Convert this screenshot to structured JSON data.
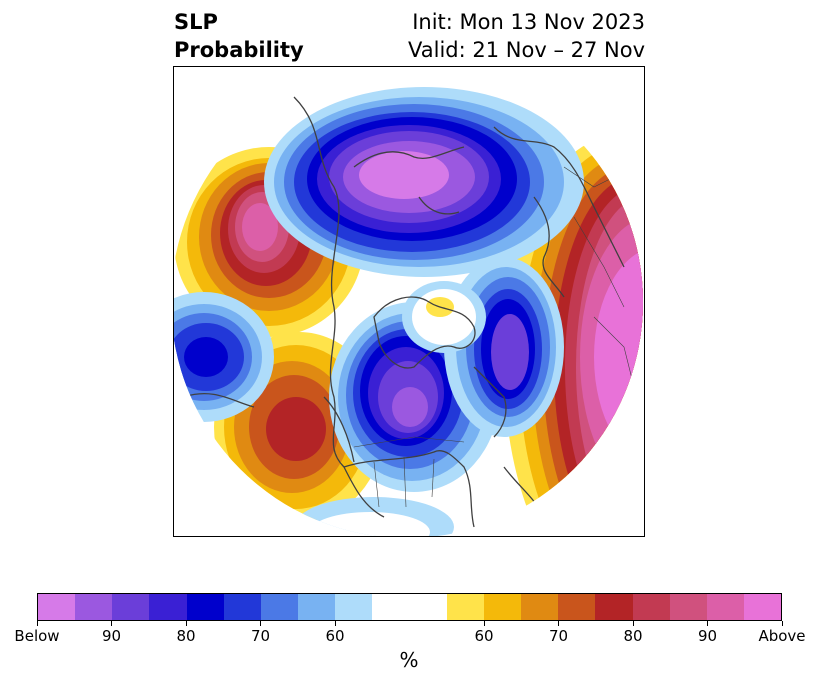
{
  "title": {
    "line1_left": "SLP",
    "line2_left": "Probability",
    "line1_right": "Init: Mon 13 Nov 2023",
    "line2_right": "Valid: 21 Nov – 27 Nov"
  },
  "colorbar": {
    "unit": "%",
    "colors": [
      "#d67ae8",
      "#9b58e0",
      "#6b3ed9",
      "#3a20d4",
      "#0000cc",
      "#2238d8",
      "#4b79e6",
      "#78b2f2",
      "#aedcfa",
      "#ffffff",
      "#ffffff",
      "#ffe34a",
      "#f4b90a",
      "#e08a12",
      "#c9551c",
      "#b32426",
      "#c23a52",
      "#d0517e",
      "#dc5fa8",
      "#e872d8"
    ],
    "ticks": [
      {
        "label": "Below"
      },
      {
        "label": "90"
      },
      {
        "label": "80"
      },
      {
        "label": "70"
      },
      {
        "label": "60"
      },
      {
        "label": "60"
      },
      {
        "label": "70"
      },
      {
        "label": "80"
      },
      {
        "label": "90"
      },
      {
        "label": "Above"
      }
    ]
  },
  "map": {
    "projection": "north-polar-stereographic",
    "variable": "sea level pressure probability",
    "background": "#ffffff",
    "coastline_color": "#404040"
  }
}
